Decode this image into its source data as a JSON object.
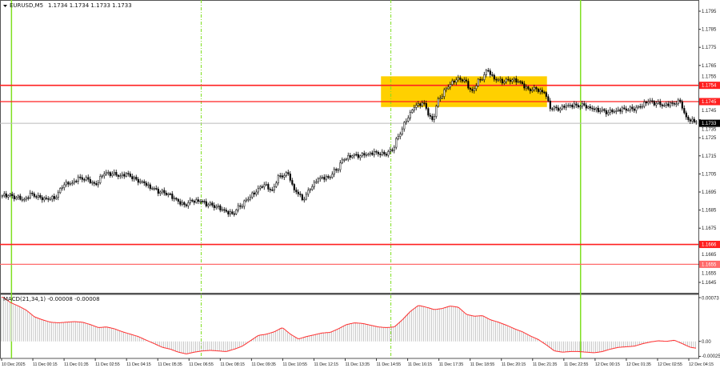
{
  "header": {
    "symbol": "EURUSD,M5",
    "quote": "1.1734 1.1734 1.1733 1.1733"
  },
  "colors": {
    "level_strong": "#ff2020",
    "level_weak": "#ff6a6a",
    "session_line": "#7fe020",
    "zone": "#ffd000",
    "macd_hist": "#c8c8c8",
    "macd_signal": "#ff3030"
  },
  "chart_data": [
    {
      "type": "candlestick",
      "title": "EURUSD,M5",
      "ylim": [
        1.164,
        1.18
      ],
      "y_ticks": [
        "1.1795",
        "1.1785",
        "1.1775",
        "1.1765",
        "1.1755",
        "1.1745",
        "1.1735",
        "1.1725",
        "1.1715",
        "1.1705",
        "1.1695",
        "1.1685",
        "1.1675",
        "1.1665",
        "1.1655",
        "1.1645"
      ],
      "x_ticks": [
        "10 Dec 2025",
        "11 Dec 00:15",
        "11 Dec 01:35",
        "11 Dec 02:55",
        "11 Dec 04:15",
        "11 Dec 05:35",
        "11 Dec 06:55",
        "11 Dec 08:15",
        "11 Dec 09:35",
        "11 Dec 10:55",
        "11 Dec 12:15",
        "11 Dec 13:35",
        "11 Dec 14:55",
        "11 Dec 16:15",
        "11 Dec 17:35",
        "11 Dec 18:55",
        "11 Dec 20:15",
        "11 Dec 21:35",
        "11 Dec 22:55",
        "12 Dec 00:15",
        "12 Dec 01:35",
        "12 Dec 02:55",
        "12 Dec 04:15"
      ],
      "close_every_20min": [
        1.1693,
        1.1692,
        1.1691,
        1.1694,
        1.1692,
        1.1691,
        1.1692,
        1.1699,
        1.17,
        1.1703,
        1.1702,
        1.1699,
        1.1705,
        1.1705,
        1.1704,
        1.1705,
        1.1702,
        1.17,
        1.1697,
        1.1695,
        1.1694,
        1.1691,
        1.1688,
        1.169,
        1.169,
        1.1688,
        1.1687,
        1.1685,
        1.1683,
        1.1687,
        1.1691,
        1.1695,
        1.1699,
        1.1696,
        1.1704,
        1.1705,
        1.1695,
        1.1691,
        1.1698,
        1.1703,
        1.1703,
        1.1707,
        1.1713,
        1.1715,
        1.1715,
        1.1716,
        1.1717,
        1.1716,
        1.1718,
        1.1727,
        1.1736,
        1.1743,
        1.1744,
        1.1735,
        1.1747,
        1.1753,
        1.1757,
        1.1757,
        1.1751,
        1.1757,
        1.1762,
        1.1757,
        1.1756,
        1.1757,
        1.1756,
        1.1752,
        1.1752,
        1.175,
        1.1741,
        1.1741,
        1.1743,
        1.1743,
        1.1743,
        1.1741,
        1.174,
        1.1739,
        1.174,
        1.1741,
        1.1741,
        1.1742,
        1.1745,
        1.1744,
        1.1743,
        1.1744,
        1.1745,
        1.1735,
        1.1734,
        1.1733
      ],
      "current_price": "1.1733",
      "levels": [
        {
          "label": "1.1754",
          "value": 1.1754,
          "strength": "strong"
        },
        {
          "label": "1.1745",
          "value": 1.1745,
          "strength": "normal"
        },
        {
          "label": "1.1666",
          "value": 1.1666,
          "strength": "strong"
        },
        {
          "label": "1.1655",
          "value": 1.1655,
          "strength": "weak"
        }
      ],
      "zone": {
        "from_time": "11 Dec 15:35",
        "to_time": "11 Dec 22:35",
        "low": 1.1742,
        "high": 1.1759
      },
      "session_lines": [
        {
          "time": "11 Dec 00:00",
          "style": "solid"
        },
        {
          "time": "11 Dec 08:00",
          "style": "dashed"
        },
        {
          "time": "11 Dec 16:00",
          "style": "dashed"
        },
        {
          "time": "12 Dec 00:00",
          "style": "solid"
        }
      ]
    },
    {
      "type": "bar",
      "title": "MACD(21,34,1) -0.00008 -0.00008",
      "ylim": [
        -0.00025,
        0.00073
      ],
      "y_ticks": [
        "0.00073",
        "0.00",
        "-0.00025"
      ],
      "values_every_20min": [
        0.00074,
        0.00065,
        0.00059,
        0.00052,
        0.00041,
        0.00036,
        0.00032,
        0.00031,
        0.00032,
        0.00033,
        0.00032,
        0.00028,
        0.00023,
        0.00024,
        0.00021,
        0.00016,
        0.00012,
        8e-05,
        2e-05,
        -4e-05,
        -0.0001,
        -0.00013,
        -0.00018,
        -0.00021,
        -0.00018,
        -0.00016,
        -0.00015,
        -0.00016,
        -0.00017,
        -0.00013,
        -8e-05,
        1e-05,
        0.0001,
        0.00012,
        0.00016,
        0.00023,
        0.00012,
        4e-05,
        8e-05,
        0.00011,
        0.00014,
        0.00015,
        0.00021,
        0.00028,
        0.00031,
        0.0003,
        0.00027,
        0.00024,
        0.00023,
        0.00024,
        0.00036,
        0.0005,
        0.0006,
        0.00057,
        0.00053,
        0.00055,
        0.00059,
        0.00057,
        0.00045,
        0.00042,
        0.00043,
        0.00036,
        0.00032,
        0.00027,
        0.00021,
        0.00016,
        9e-05,
        3e-05,
        -6e-05,
        -0.00016,
        -0.00018,
        -0.00017,
        -0.00017,
        -0.00018,
        -0.00019,
        -0.00017,
        -0.00013,
        -0.0001,
        -9e-05,
        -8e-05,
        -4e-05,
        -1e-05,
        1e-05,
        0.0,
        2e-05,
        -4e-05,
        -0.0001,
        -0.00012
      ]
    }
  ]
}
